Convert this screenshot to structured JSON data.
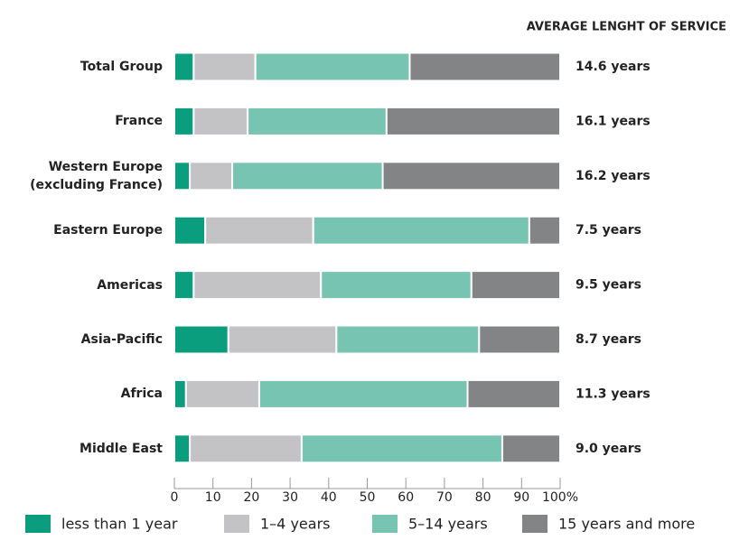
{
  "chart_data": {
    "type": "stacked_barh",
    "annotation_title": "AVERAGE LENGHT OF SERVICE",
    "categories": [
      "Total Group",
      "France",
      "Western Europe\n(excluding France)",
      "Eastern Europe",
      "Americas",
      "Asia-Pacific",
      "Africa",
      "Middle East"
    ],
    "annotations": [
      "14.6 years",
      "16.1 years",
      "16.2 years",
      "7.5 years",
      "9.5 years",
      "8.7 years",
      "11.3 years",
      "9.0 years"
    ],
    "series": [
      {
        "name": "less than 1 year",
        "color": "#0b9e7e",
        "values": [
          5,
          5,
          4,
          8,
          5,
          14,
          3,
          4
        ]
      },
      {
        "name": "1–4 years",
        "color": "#c3c3c5",
        "values": [
          16,
          14,
          11,
          28,
          33,
          28,
          19,
          29
        ]
      },
      {
        "name": "5–14 years",
        "color": "#77c4b2",
        "values": [
          40,
          36,
          39,
          56,
          39,
          37,
          54,
          52
        ]
      },
      {
        "name": "15 years and more",
        "color": "#838486",
        "values": [
          39,
          45,
          46,
          8,
          23,
          21,
          24,
          15
        ]
      }
    ],
    "xlim": [
      0,
      100
    ],
    "xticks": [
      0,
      10,
      20,
      30,
      40,
      50,
      60,
      70,
      80,
      90,
      {
        "value": 100,
        "label": "100%"
      }
    ]
  }
}
